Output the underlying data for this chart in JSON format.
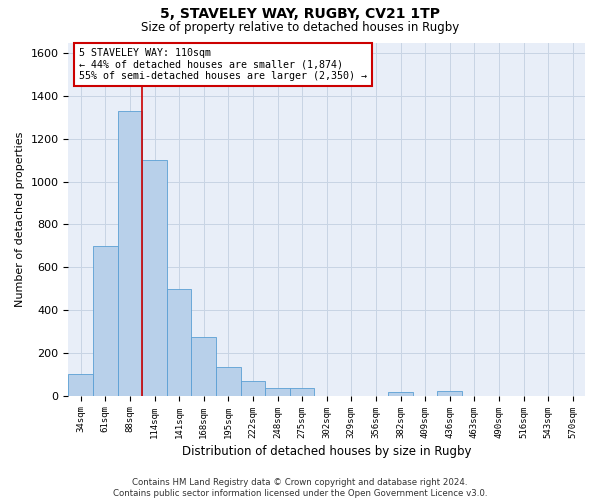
{
  "title1": "5, STAVELEY WAY, RUGBY, CV21 1TP",
  "title2": "Size of property relative to detached houses in Rugby",
  "xlabel": "Distribution of detached houses by size in Rugby",
  "ylabel": "Number of detached properties",
  "bar_color": "#b8d0ea",
  "bar_edge_color": "#5a9fd4",
  "grid_color": "#c8d4e4",
  "bg_color": "#e8eef8",
  "annotation_box_color": "#cc0000",
  "vline_color": "#cc0000",
  "categories": [
    "34sqm",
    "61sqm",
    "88sqm",
    "114sqm",
    "141sqm",
    "168sqm",
    "195sqm",
    "222sqm",
    "248sqm",
    "275sqm",
    "302sqm",
    "329sqm",
    "356sqm",
    "382sqm",
    "409sqm",
    "436sqm",
    "463sqm",
    "490sqm",
    "516sqm",
    "543sqm",
    "570sqm"
  ],
  "values": [
    100,
    700,
    1330,
    1100,
    500,
    275,
    135,
    70,
    35,
    35,
    0,
    0,
    0,
    15,
    0,
    20,
    0,
    0,
    0,
    0,
    0
  ],
  "vline_position": 2.5,
  "annotation_text": "5 STAVELEY WAY: 110sqm\n← 44% of detached houses are smaller (1,874)\n55% of semi-detached houses are larger (2,350) →",
  "ylim": [
    0,
    1650
  ],
  "yticks": [
    0,
    200,
    400,
    600,
    800,
    1000,
    1200,
    1400,
    1600
  ],
  "footnote": "Contains HM Land Registry data © Crown copyright and database right 2024.\nContains public sector information licensed under the Open Government Licence v3.0."
}
